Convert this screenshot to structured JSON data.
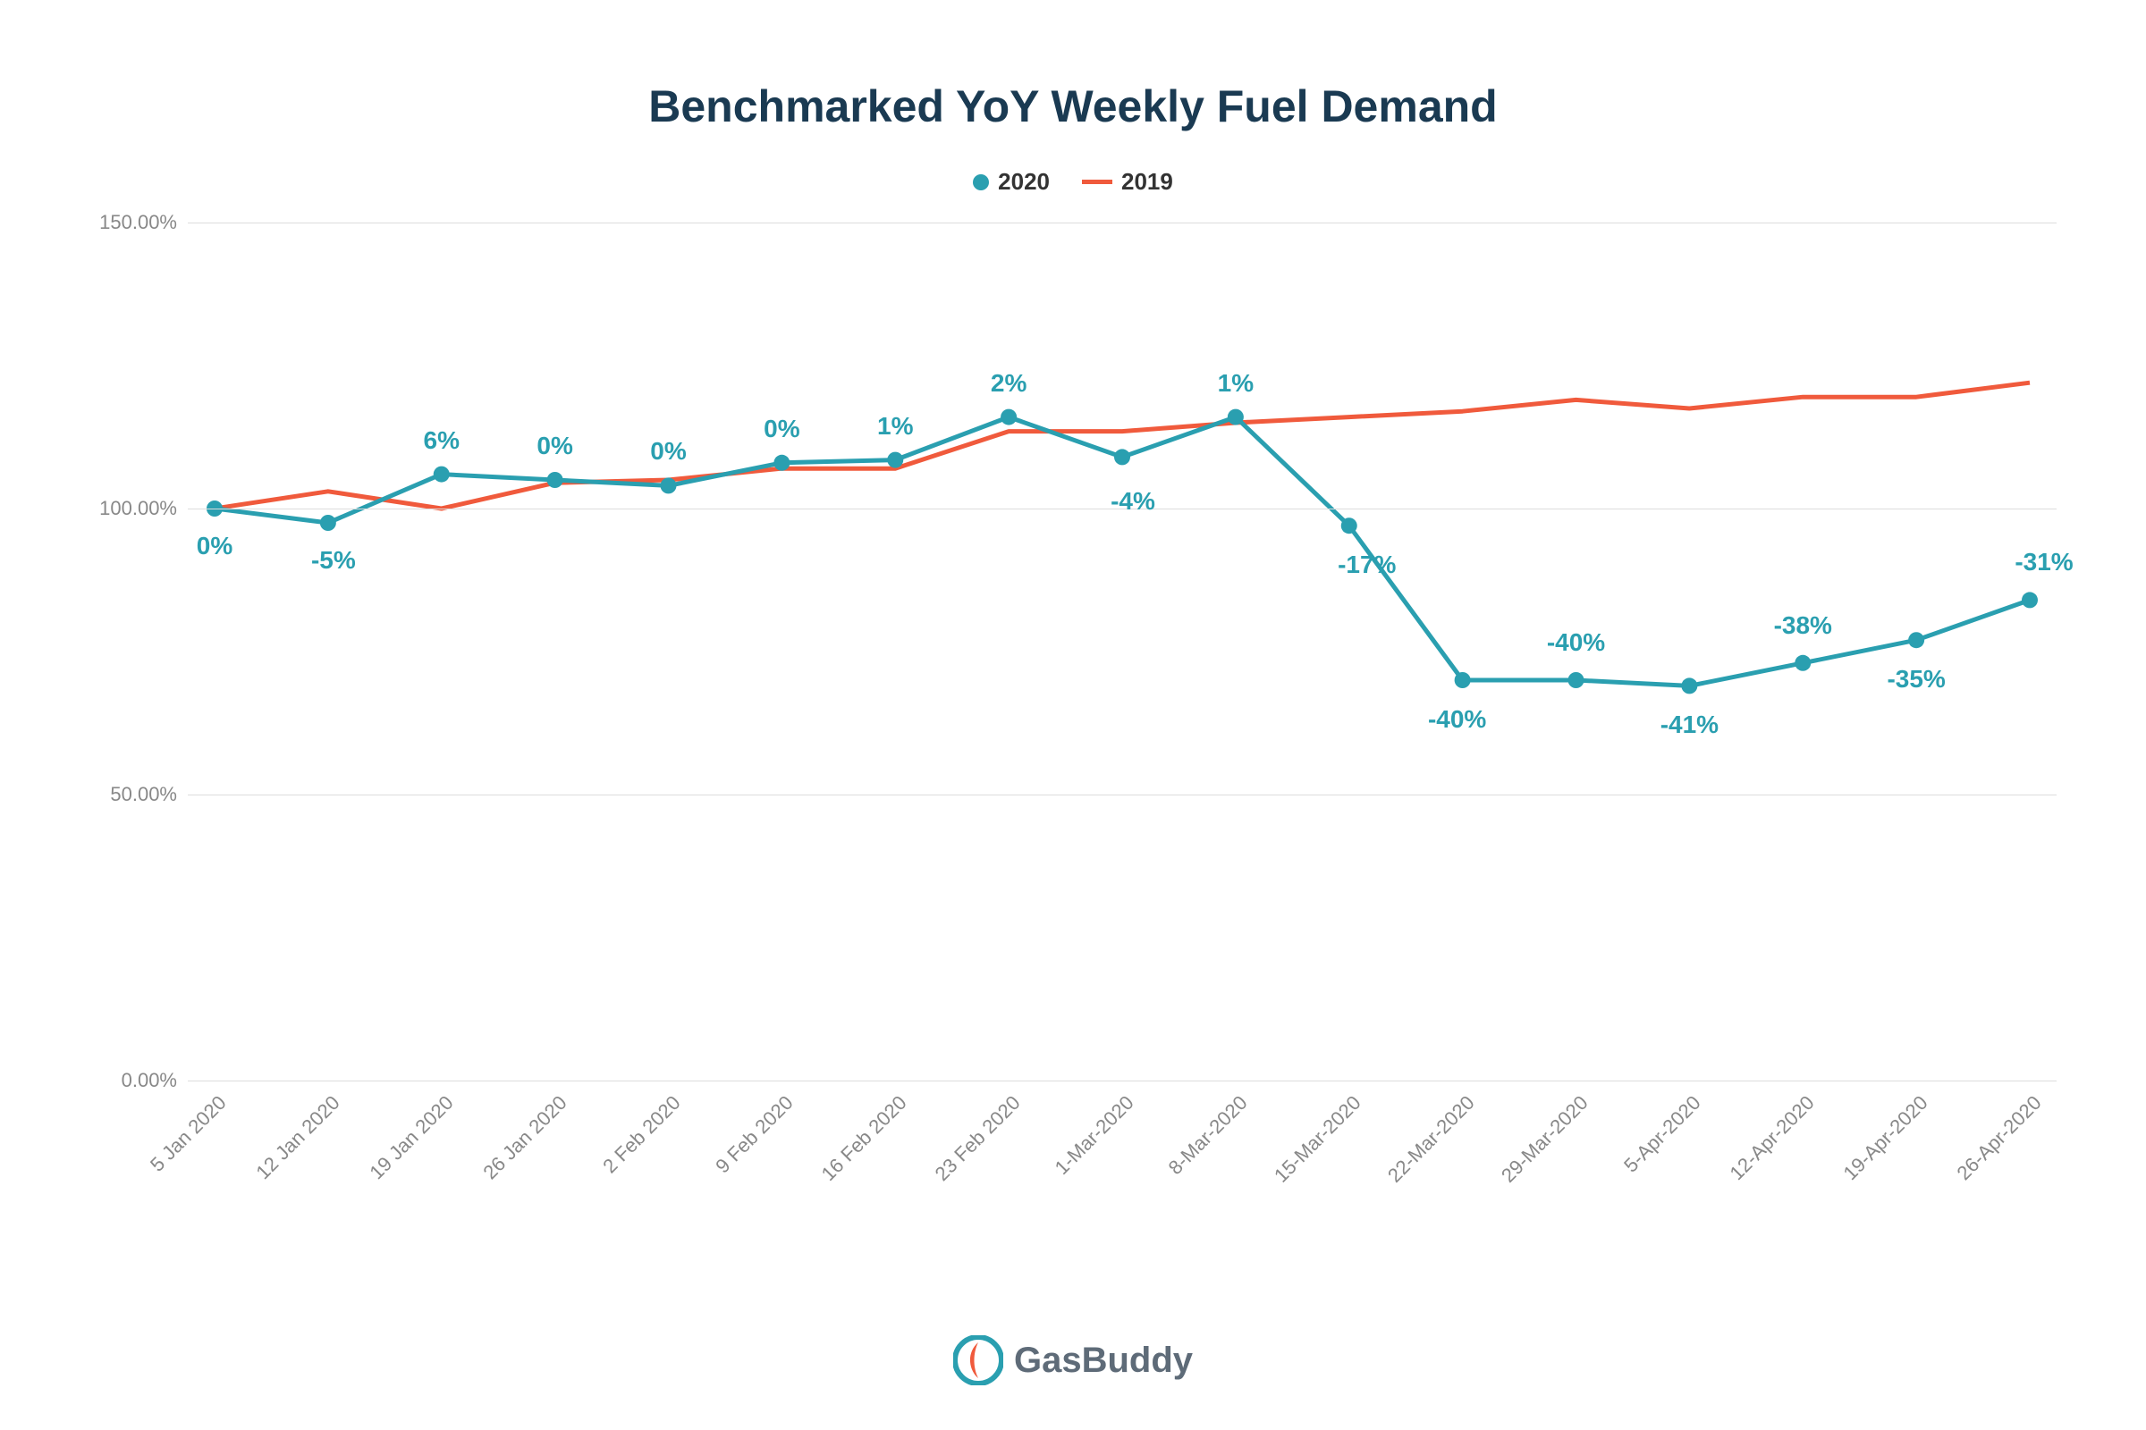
{
  "chart": {
    "type": "line",
    "title": "Benchmarked YoY Weekly Fuel Demand",
    "title_fontsize": 50,
    "title_color": "#1a3a52",
    "background_color": "#ffffff",
    "grid_color": "#dcdcdc",
    "axis_label_color": "#888888",
    "axis_label_fontsize": 22,
    "ylim": [
      0,
      150
    ],
    "ytick_step": 50,
    "yticks": [
      "0.00%",
      "50.00%",
      "100.00%",
      "150.00%"
    ],
    "xlabels": [
      "5 Jan 2020",
      "12 Jan 2020",
      "19 Jan 2020",
      "26 Jan 2020",
      "2 Feb 2020",
      "9 Feb 2020",
      "16 Feb 2020",
      "23 Feb 2020",
      "1-Mar-2020",
      "8-Mar-2020",
      "15-Mar-2020",
      "22-Mar-2020",
      "29-Mar-2020",
      "5-Apr-2020",
      "12-Apr-2020",
      "19-Apr-2020",
      "26-Apr-2020"
    ],
    "legend": {
      "items": [
        {
          "label": "2020",
          "color": "#2a9fb0",
          "marker": "dot"
        },
        {
          "label": "2019",
          "color": "#f05a3c",
          "marker": "line"
        }
      ],
      "fontsize": 26
    },
    "series": {
      "s2020": {
        "label": "2020",
        "color": "#2a9fb0",
        "line_width": 5,
        "marker": "circle",
        "marker_size": 9,
        "values": [
          100,
          97.5,
          106,
          105,
          104,
          108,
          108.5,
          116,
          109,
          116,
          97,
          70,
          70,
          69,
          73,
          77,
          84
        ],
        "point_labels": [
          "0%",
          "-5%",
          "6%",
          "0%",
          "0%",
          "0%",
          "1%",
          "2%",
          "-4%",
          "1%",
          "-17%",
          "-40%",
          "-40%",
          "-41%",
          "-38%",
          "-35%",
          "-31%"
        ],
        "label_offsets": [
          {
            "dx": 0,
            "dy": 42
          },
          {
            "dx": 6,
            "dy": 42
          },
          {
            "dx": 0,
            "dy": -38
          },
          {
            "dx": 0,
            "dy": -38
          },
          {
            "dx": 0,
            "dy": -38
          },
          {
            "dx": 0,
            "dy": -38
          },
          {
            "dx": 0,
            "dy": -38
          },
          {
            "dx": 0,
            "dy": -38
          },
          {
            "dx": 12,
            "dy": 50
          },
          {
            "dx": 0,
            "dy": -38
          },
          {
            "dx": 20,
            "dy": 44
          },
          {
            "dx": -6,
            "dy": 44
          },
          {
            "dx": 0,
            "dy": -42
          },
          {
            "dx": 0,
            "dy": 44
          },
          {
            "dx": 0,
            "dy": -42
          },
          {
            "dx": 0,
            "dy": 44
          },
          {
            "dx": 16,
            "dy": -42
          }
        ],
        "label_fontsize": 28,
        "label_color": "#2a9fb0"
      },
      "s2019": {
        "label": "2019",
        "color": "#f05a3c",
        "line_width": 5,
        "marker": "none",
        "values": [
          100,
          103,
          100,
          104.5,
          105,
          107,
          107,
          113.5,
          113.5,
          115,
          116,
          117,
          119,
          117.5,
          119.5,
          119.5,
          122
        ]
      }
    }
  },
  "logo": {
    "text": "GasBuddy",
    "text_color": "#5e6b78",
    "text_fontsize": 40,
    "icon_ring_color": "#2a9fb0",
    "icon_accent_color": "#f05a3c",
    "icon_inner_color": "#ffffff"
  }
}
